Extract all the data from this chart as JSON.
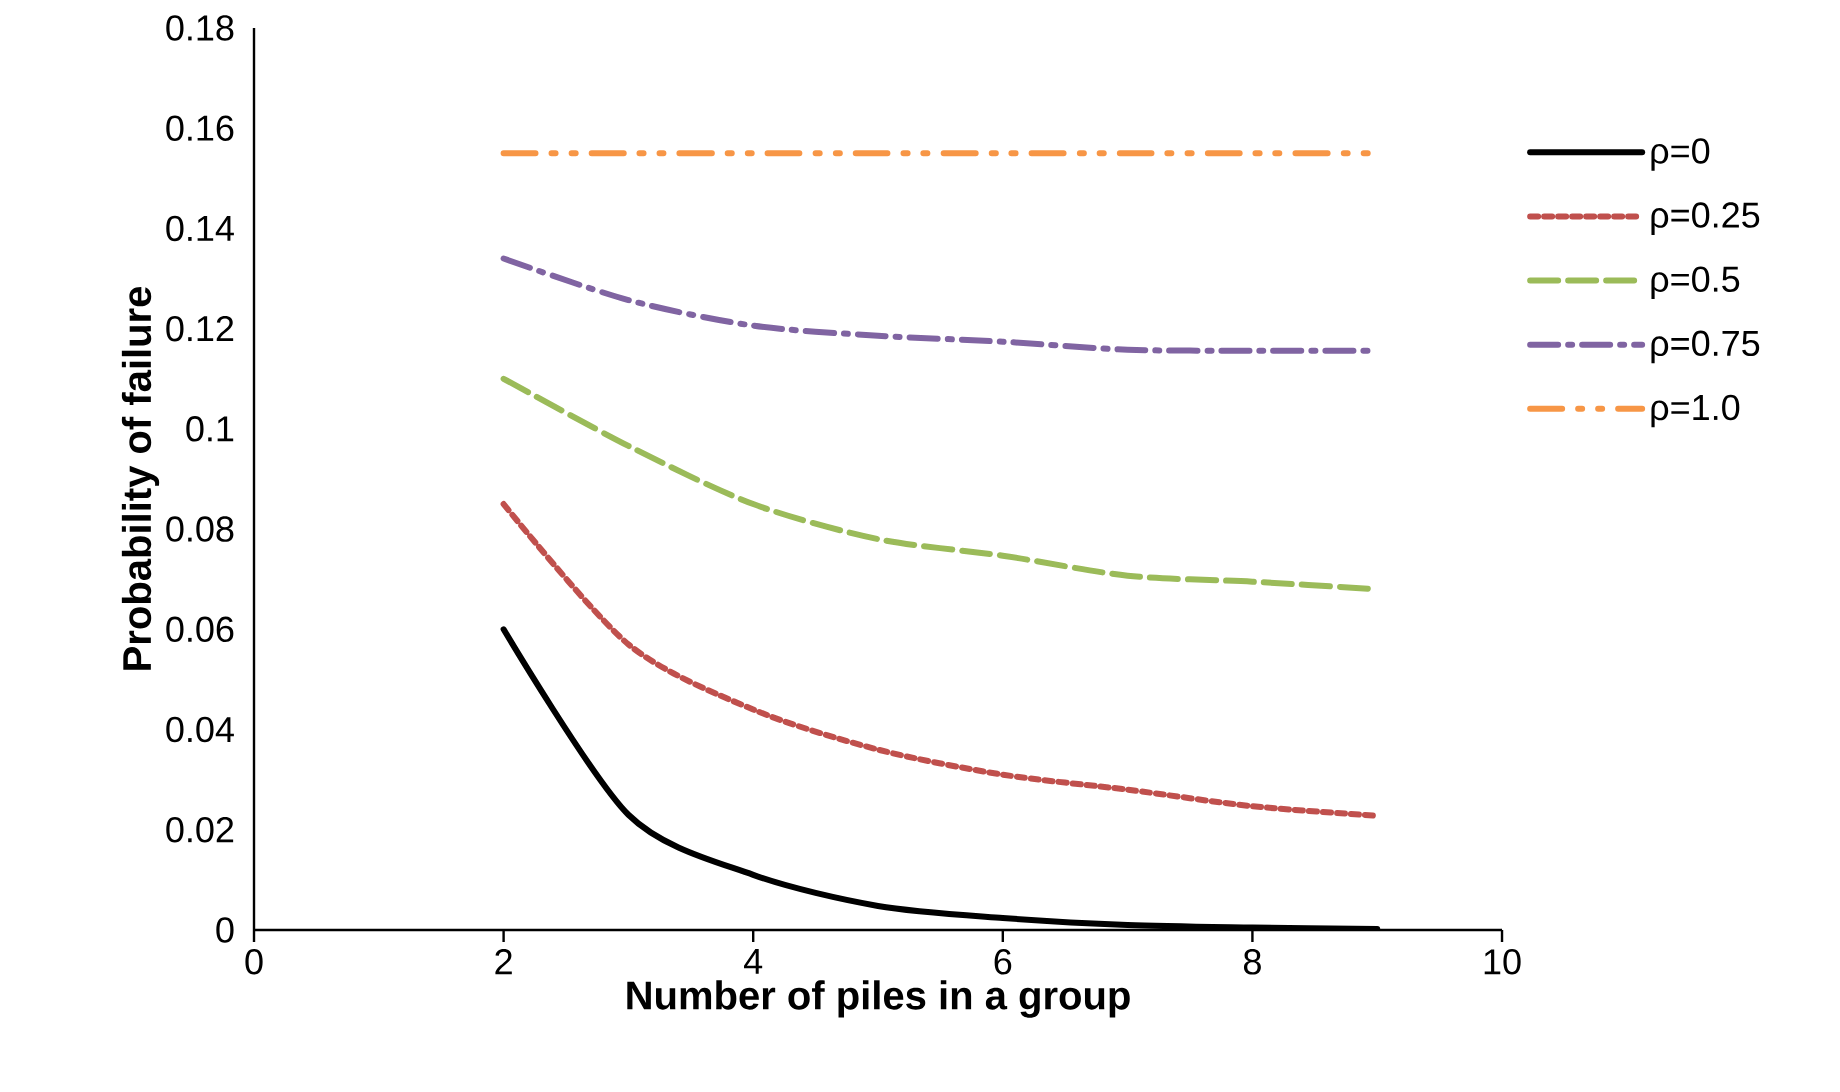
{
  "chart_data": {
    "type": "line",
    "xlabel": "Number of piles in a group",
    "ylabel": "Probability of failure",
    "x": [
      2,
      3,
      4,
      5,
      6,
      7,
      8,
      9
    ],
    "series": [
      {
        "name": "ρ=0",
        "color": "#000000",
        "line_style": "solid",
        "values": [
          0.06,
          0.023,
          0.011,
          0.0048,
          0.0024,
          0.001,
          0.0005,
          0.0002
        ]
      },
      {
        "name": "ρ=0.25",
        "color": "#c0504d",
        "line_style": "dotted",
        "values": [
          0.085,
          0.057,
          0.044,
          0.036,
          0.031,
          0.028,
          0.0247,
          0.0228
        ]
      },
      {
        "name": "ρ=0.5",
        "color": "#9bbb59",
        "line_style": "dashed",
        "values": [
          0.11,
          0.0966,
          0.085,
          0.078,
          0.0747,
          0.0707,
          0.0695,
          0.068
        ]
      },
      {
        "name": "ρ=0.75",
        "color": "#8064a2",
        "line_style": "dashdot",
        "values": [
          0.134,
          0.1257,
          0.1206,
          0.1186,
          0.1174,
          0.1158,
          0.1156,
          0.1156
        ]
      },
      {
        "name": "ρ=1.0",
        "color": "#f79646",
        "line_style": "dashdotdot",
        "values": [
          0.155,
          0.155,
          0.155,
          0.155,
          0.155,
          0.155,
          0.155,
          0.155
        ]
      }
    ],
    "xlim": [
      0,
      10
    ],
    "xticks": [
      0,
      2,
      4,
      6,
      8,
      10
    ],
    "ylim": [
      0,
      0.18
    ],
    "yticks": [
      0,
      0.02,
      0.04,
      0.06,
      0.08,
      0.1,
      0.12,
      0.14,
      0.16,
      0.18
    ],
    "grid": false,
    "legend": "right",
    "marker": "none"
  }
}
